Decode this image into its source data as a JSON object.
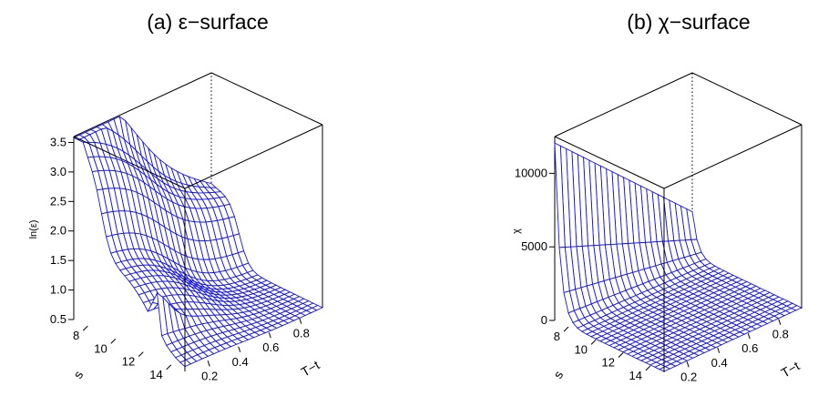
{
  "chart_data": [
    {
      "type": "surface",
      "panel": "a",
      "title": "(a) ε−surface",
      "zlabel": "ln(ε)",
      "xlabel": "s",
      "ylabel": "T−t",
      "s_range": [
        7,
        15
      ],
      "t_range": [
        0.05,
        0.95
      ],
      "zlim": [
        0.5,
        3.6
      ],
      "z_ticks": [
        "0.5",
        "1.0",
        "1.5",
        "2.0",
        "2.5",
        "3.0",
        "3.5"
      ],
      "s_ticks": [
        "8",
        "10",
        "12",
        "14"
      ],
      "t_ticks": [
        "0.2",
        "0.4",
        "0.6",
        "0.8"
      ],
      "mesh_color": "#1515e6",
      "surface_description": "ln(ε) ≈ 3.5 at s=7, small T−t; drops to ≈ 2.0 near s≈9 plateau, then a sharp ridge near s≈13 at small T−t before falling to ≈ 0.5 at large s"
    },
    {
      "type": "surface",
      "panel": "b",
      "title": "(b) χ−surface",
      "zlabel": "χ",
      "xlabel": "s",
      "ylabel": "T−t",
      "s_range": [
        7,
        15
      ],
      "t_range": [
        0.05,
        0.95
      ],
      "zlim": [
        0,
        12500
      ],
      "z_ticks": [
        "0",
        "5000",
        "10000"
      ],
      "s_ticks": [
        "8",
        "10",
        "12",
        "14"
      ],
      "t_ticks": [
        "0.2",
        "0.4",
        "0.6",
        "0.8"
      ],
      "mesh_color": "#1515e6",
      "surface_description": "χ ≈ 12500 at s=7, small T−t; decays steeply to near 0 by s≈9 and stays flat"
    }
  ]
}
